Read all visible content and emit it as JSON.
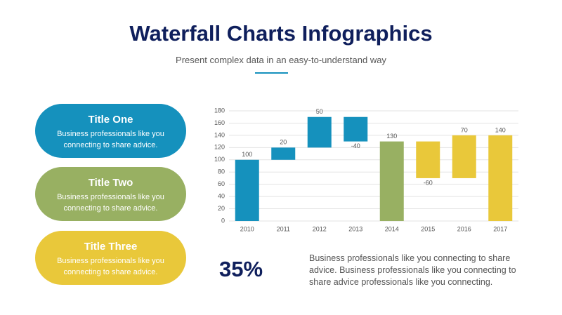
{
  "header": {
    "title": "Waterfall Charts Infographics",
    "subtitle": "Present complex data in an easy-to-understand way"
  },
  "cards": [
    {
      "title": "Title One",
      "text": "Business professionals like you connecting to share advice.",
      "color": "#1591bd"
    },
    {
      "title": "Title Two",
      "text": "Business professionals like you connecting to share advice.",
      "color": "#98b062"
    },
    {
      "title": "Title Three",
      "text": "Business professionals like you connecting to share advice.",
      "color": "#e9c83a"
    }
  ],
  "chart_data": {
    "type": "waterfall",
    "categories": [
      "2010",
      "2011",
      "2012",
      "2013",
      "2014",
      "2015",
      "2016",
      "2017"
    ],
    "values": [
      100,
      20,
      50,
      -40,
      130,
      -60,
      70,
      140
    ],
    "totals": [
      true,
      false,
      false,
      false,
      true,
      false,
      false,
      true
    ],
    "colors": [
      "#1591bd",
      "#1591bd",
      "#1591bd",
      "#1591bd",
      "#98b062",
      "#e9c83a",
      "#e9c83a",
      "#e9c83a"
    ],
    "ylim": [
      0,
      180
    ],
    "yticks": [
      0,
      20,
      40,
      60,
      80,
      100,
      120,
      140,
      160,
      180
    ],
    "grid": true
  },
  "stat": {
    "value": "35%",
    "text": "Business professionals like you connecting to share advice. Business professionals like you connecting to share advice professionals like you connecting."
  }
}
